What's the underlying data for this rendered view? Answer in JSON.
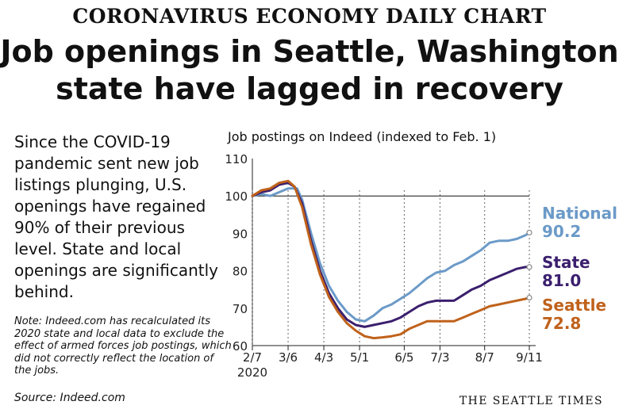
{
  "kicker": "CORONAVIRUS ECONOMY DAILY CHART",
  "headline_line1": "Job openings in Seattle, Washington",
  "headline_line2": "state have lagged in recovery",
  "intro": "Since the COVID-19 pandemic sent new job listings plunging, U.S. openings have regained 90% of their previous level. State and local openings are significantly behind.",
  "note": "Note: Indeed.com has recalculated its 2020 state and local data to exclude the effect of armed forces job postings, which did not correctly reflect the location of the jobs.",
  "source": "Source: Indeed.com",
  "logo": "THE SEATTLE TIMES",
  "chart_data": {
    "type": "line",
    "title": "Job postings on Indeed (indexed to Feb. 1)",
    "x_ticks": [
      "2/7",
      "3/6",
      "4/3",
      "5/1",
      "6/5",
      "7/3",
      "8/7",
      "9/11"
    ],
    "x_year_label": "2020",
    "y_ticks": [
      60,
      70,
      80,
      90,
      100,
      110
    ],
    "ylim": [
      60,
      110
    ],
    "xlim": [
      "2020-02-07",
      "2020-09-11"
    ],
    "reference_line": 100,
    "series": [
      {
        "name": "National",
        "end_label": "90.2",
        "color": "#6b9ac8",
        "points": [
          [
            "2020-02-07",
            100
          ],
          [
            "2020-02-14",
            100.5
          ],
          [
            "2020-02-21",
            100
          ],
          [
            "2020-02-28",
            101
          ],
          [
            "2020-03-06",
            102
          ],
          [
            "2020-03-13",
            102
          ],
          [
            "2020-03-17",
            99
          ],
          [
            "2020-03-24",
            90
          ],
          [
            "2020-03-31",
            82
          ],
          [
            "2020-04-07",
            76
          ],
          [
            "2020-04-14",
            72
          ],
          [
            "2020-04-21",
            69
          ],
          [
            "2020-04-28",
            67
          ],
          [
            "2020-05-05",
            66.5
          ],
          [
            "2020-05-12",
            68
          ],
          [
            "2020-05-19",
            70
          ],
          [
            "2020-05-26",
            71
          ],
          [
            "2020-06-02",
            72.5
          ],
          [
            "2020-06-09",
            74
          ],
          [
            "2020-06-16",
            76
          ],
          [
            "2020-06-23",
            78
          ],
          [
            "2020-06-30",
            79.5
          ],
          [
            "2020-07-07",
            80
          ],
          [
            "2020-07-14",
            81.5
          ],
          [
            "2020-07-21",
            82.5
          ],
          [
            "2020-07-28",
            84
          ],
          [
            "2020-08-04",
            85.5
          ],
          [
            "2020-08-11",
            87.5
          ],
          [
            "2020-08-18",
            88
          ],
          [
            "2020-08-25",
            88
          ],
          [
            "2020-09-01",
            88.5
          ],
          [
            "2020-09-08",
            89.5
          ],
          [
            "2020-09-11",
            90.2
          ]
        ]
      },
      {
        "name": "State",
        "end_label": "81.0",
        "color": "#3b1f6e",
        "points": [
          [
            "2020-02-07",
            100
          ],
          [
            "2020-02-14",
            101
          ],
          [
            "2020-02-21",
            101.5
          ],
          [
            "2020-02-28",
            103
          ],
          [
            "2020-03-06",
            103.5
          ],
          [
            "2020-03-11",
            102.5
          ],
          [
            "2020-03-17",
            98
          ],
          [
            "2020-03-24",
            88
          ],
          [
            "2020-03-31",
            80
          ],
          [
            "2020-04-07",
            74
          ],
          [
            "2020-04-14",
            70
          ],
          [
            "2020-04-21",
            67
          ],
          [
            "2020-04-28",
            65.5
          ],
          [
            "2020-05-05",
            65
          ],
          [
            "2020-05-12",
            65.5
          ],
          [
            "2020-05-19",
            66
          ],
          [
            "2020-05-26",
            66.5
          ],
          [
            "2020-06-02",
            67.5
          ],
          [
            "2020-06-09",
            69
          ],
          [
            "2020-06-16",
            70.5
          ],
          [
            "2020-06-23",
            71.5
          ],
          [
            "2020-06-30",
            72
          ],
          [
            "2020-07-07",
            72
          ],
          [
            "2020-07-14",
            72
          ],
          [
            "2020-07-21",
            73.5
          ],
          [
            "2020-07-28",
            75
          ],
          [
            "2020-08-04",
            76
          ],
          [
            "2020-08-11",
            77.5
          ],
          [
            "2020-08-18",
            78.5
          ],
          [
            "2020-08-25",
            79.5
          ],
          [
            "2020-09-01",
            80.5
          ],
          [
            "2020-09-08",
            81
          ],
          [
            "2020-09-11",
            81
          ]
        ]
      },
      {
        "name": "Seattle",
        "end_label": "72.8",
        "color": "#c0621b",
        "points": [
          [
            "2020-02-07",
            100
          ],
          [
            "2020-02-14",
            101.5
          ],
          [
            "2020-02-21",
            102
          ],
          [
            "2020-02-28",
            103.5
          ],
          [
            "2020-03-06",
            104
          ],
          [
            "2020-03-11",
            102.5
          ],
          [
            "2020-03-17",
            97
          ],
          [
            "2020-03-24",
            87
          ],
          [
            "2020-03-31",
            79
          ],
          [
            "2020-04-07",
            73
          ],
          [
            "2020-04-14",
            69
          ],
          [
            "2020-04-21",
            66
          ],
          [
            "2020-04-28",
            64
          ],
          [
            "2020-05-05",
            62.5
          ],
          [
            "2020-05-12",
            62
          ],
          [
            "2020-05-19",
            62.2
          ],
          [
            "2020-05-26",
            62.5
          ],
          [
            "2020-06-02",
            63
          ],
          [
            "2020-06-09",
            64.5
          ],
          [
            "2020-06-16",
            65.5
          ],
          [
            "2020-06-23",
            66.5
          ],
          [
            "2020-06-30",
            66.5
          ],
          [
            "2020-07-07",
            66.5
          ],
          [
            "2020-07-14",
            66.5
          ],
          [
            "2020-07-21",
            67.5
          ],
          [
            "2020-07-28",
            68.5
          ],
          [
            "2020-08-04",
            69.5
          ],
          [
            "2020-08-11",
            70.5
          ],
          [
            "2020-08-18",
            71
          ],
          [
            "2020-08-25",
            71.5
          ],
          [
            "2020-09-01",
            72
          ],
          [
            "2020-09-08",
            72.5
          ],
          [
            "2020-09-11",
            72.8
          ]
        ]
      }
    ]
  }
}
